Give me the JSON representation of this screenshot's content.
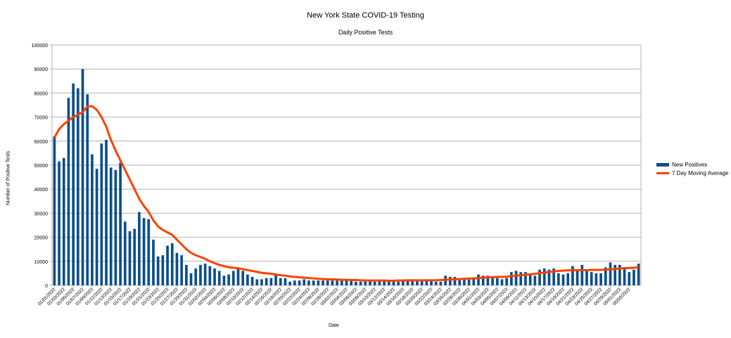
{
  "chart_data": {
    "type": "bar",
    "title": "New York State COVID-19 Testing",
    "subtitle": "Daily Positive Tests",
    "xlabel": "Date",
    "ylabel": "Number of Positive Tests",
    "ylim": [
      0,
      100000
    ],
    "yticks": [
      0,
      10000,
      20000,
      30000,
      40000,
      50000,
      60000,
      70000,
      80000,
      90000,
      100000
    ],
    "grid": true,
    "legend_position": "right",
    "colors": {
      "bars": "#0b4f8a",
      "line": "#ff4000"
    },
    "series": [
      {
        "name": "New Positives",
        "type": "bar",
        "values": [
          62000,
          51500,
          53000,
          78000,
          84000,
          82000,
          90000,
          79500,
          54500,
          48500,
          59000,
          60500,
          49000,
          48000,
          51000,
          26500,
          22500,
          23500,
          30500,
          28000,
          27500,
          19000,
          12000,
          12500,
          16500,
          17500,
          13500,
          12500,
          8500,
          5000,
          7000,
          8500,
          9000,
          8000,
          7000,
          6000,
          4000,
          4500,
          6000,
          7500,
          6000,
          4500,
          3500,
          2500,
          2500,
          3000,
          3000,
          4500,
          3000,
          3000,
          1500,
          2000,
          2000,
          2500,
          2000,
          2000,
          2000,
          2000,
          2000,
          2000,
          2000,
          2500,
          2000,
          2000,
          1500,
          1500,
          2000,
          2000,
          1500,
          2000,
          2000,
          1500,
          1500,
          1500,
          2000,
          2500,
          2500,
          2000,
          2000,
          2500,
          2500,
          1500,
          1500,
          4000,
          3500,
          3500,
          2500,
          3000,
          3000,
          3000,
          4500,
          4000,
          4000,
          3000,
          3000,
          2500,
          3000,
          5500,
          6000,
          5500,
          5500,
          4500,
          4000,
          6500,
          7000,
          6500,
          7000,
          5000,
          4500,
          5000,
          8000,
          6500,
          8500,
          6000,
          5500,
          5000,
          5000,
          7500,
          9500,
          8500,
          8500,
          7500,
          5500,
          6500,
          9000
        ]
      },
      {
        "name": "7 Day Moving Average",
        "type": "line",
        "values": [
          61500,
          65000,
          67000,
          68500,
          70000,
          71000,
          72000,
          74500,
          74500,
          73000,
          70000,
          66000,
          60500,
          56000,
          52000,
          48000,
          44000,
          40000,
          36000,
          33000,
          30500,
          27000,
          24500,
          23000,
          22000,
          21000,
          19000,
          17000,
          15000,
          13500,
          12500,
          11800,
          11000,
          10000,
          9200,
          8500,
          8000,
          7500,
          7300,
          7100,
          6700,
          6300,
          6000,
          5600,
          5200,
          5000,
          4800,
          4500,
          4200,
          4000,
          3700,
          3500,
          3300,
          3200,
          3000,
          2900,
          2700,
          2600,
          2500,
          2500,
          2400,
          2300,
          2300,
          2200,
          2200,
          2100,
          2000,
          2000,
          2000,
          2000,
          2000,
          1900,
          1900,
          2000,
          2000,
          2100,
          2100,
          2100,
          2100,
          2100,
          2100,
          2100,
          2200,
          2300,
          2400,
          2500,
          2600,
          2700,
          2800,
          2900,
          3000,
          3200,
          3300,
          3400,
          3500,
          3500,
          3600,
          3800,
          4000,
          4200,
          4400,
          4600,
          4800,
          5000,
          5300,
          5500,
          5800,
          6000,
          6100,
          6200,
          6300,
          6300,
          6300,
          6300,
          6400,
          6400,
          6400,
          6500,
          6600,
          6800,
          7000,
          7100,
          7200,
          7300,
          7500
        ]
      }
    ],
    "tick_labels": [
      "01/01/2022",
      "01/03/2022",
      "01/05/2022",
      "01/07/2022",
      "01/09/2022",
      "01/11/2022",
      "01/13/2022",
      "01/15/2022",
      "01/17/2022",
      "01/19/2022",
      "01/21/2022",
      "01/23/2022",
      "01/25/2022",
      "01/27/2022",
      "01/29/2022",
      "01/31/2022",
      "02/02/2022",
      "02/04/2022",
      "02/06/2022",
      "02/08/2022",
      "02/10/2022",
      "02/12/2022",
      "02/14/2022",
      "02/16/2022",
      "02/18/2022",
      "02/20/2022",
      "02/22/2022",
      "02/24/2022",
      "02/26/2022",
      "02/28/2022",
      "03/02/2022",
      "03/04/2022",
      "03/06/2022",
      "03/08/2022",
      "03/10/2022",
      "03/12/2022",
      "03/14/2022",
      "03/16/2022",
      "03/18/2022",
      "03/20/2022",
      "03/22/2022",
      "03/24/2022",
      "03/26/2022",
      "03/28/2022",
      "03/30/2022",
      "04/01/2022",
      "04/03/2022",
      "04/05/2022",
      "04/07/2022",
      "04/09/2022",
      "04/11/2022",
      "04/13/2022",
      "04/15/2022",
      "04/17/2022",
      "04/19/2022",
      "04/21/2022",
      "04/23/2022",
      "04/25/2022",
      "04/27/2022",
      "04/29/2022",
      "05/01/2022",
      "05/03/2022"
    ]
  }
}
